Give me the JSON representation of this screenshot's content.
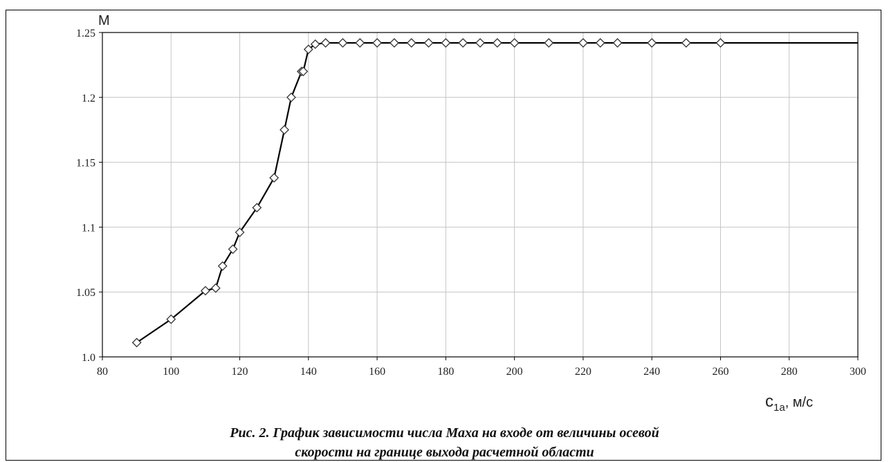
{
  "chart_data": {
    "type": "line",
    "ylabel": "M",
    "xlabel_main": "c",
    "xlabel_sub": "1a",
    "xlabel_unit": ", м/с",
    "xlim": [
      80,
      300
    ],
    "ylim": [
      1.0,
      1.25
    ],
    "grid": true,
    "x_ticks": [
      80,
      100,
      120,
      140,
      160,
      180,
      200,
      220,
      240,
      260,
      280,
      300
    ],
    "y_ticks": [
      1.0,
      1.05,
      1.1,
      1.15,
      1.2,
      1.25
    ],
    "y_tick_labels": [
      "1.0",
      "1.05",
      "1.1",
      "1.15",
      "1.2",
      "1.25"
    ],
    "line_color": "#000000",
    "marker": "diamond",
    "series": [
      {
        "x": [
          90,
          100,
          110,
          113,
          115,
          118,
          120,
          125,
          130,
          133,
          135,
          138,
          138.5,
          140,
          142,
          145,
          150,
          155,
          160,
          165,
          170,
          175,
          180,
          185,
          190,
          195,
          200,
          210,
          220,
          225,
          230,
          240,
          250,
          260,
          300
        ],
        "y": [
          1.011,
          1.029,
          1.051,
          1.053,
          1.07,
          1.083,
          1.096,
          1.115,
          1.138,
          1.175,
          1.2,
          1.22,
          1.22,
          1.237,
          1.241,
          1.242,
          1.242,
          1.242,
          1.242,
          1.242,
          1.242,
          1.242,
          1.242,
          1.242,
          1.242,
          1.242,
          1.242,
          1.242,
          1.242,
          1.242,
          1.242,
          1.242,
          1.242,
          1.242,
          1.242
        ],
        "markers": [
          true,
          true,
          true,
          true,
          true,
          true,
          true,
          true,
          true,
          true,
          true,
          true,
          true,
          true,
          true,
          true,
          true,
          true,
          true,
          true,
          true,
          true,
          true,
          true,
          true,
          true,
          true,
          true,
          true,
          true,
          true,
          true,
          true,
          true,
          false
        ]
      }
    ]
  },
  "caption": {
    "line1": "Рис. 2. График зависимости числа Маха на входе от величины осевой",
    "line2": "скорости на границе выхода расчетной области"
  }
}
